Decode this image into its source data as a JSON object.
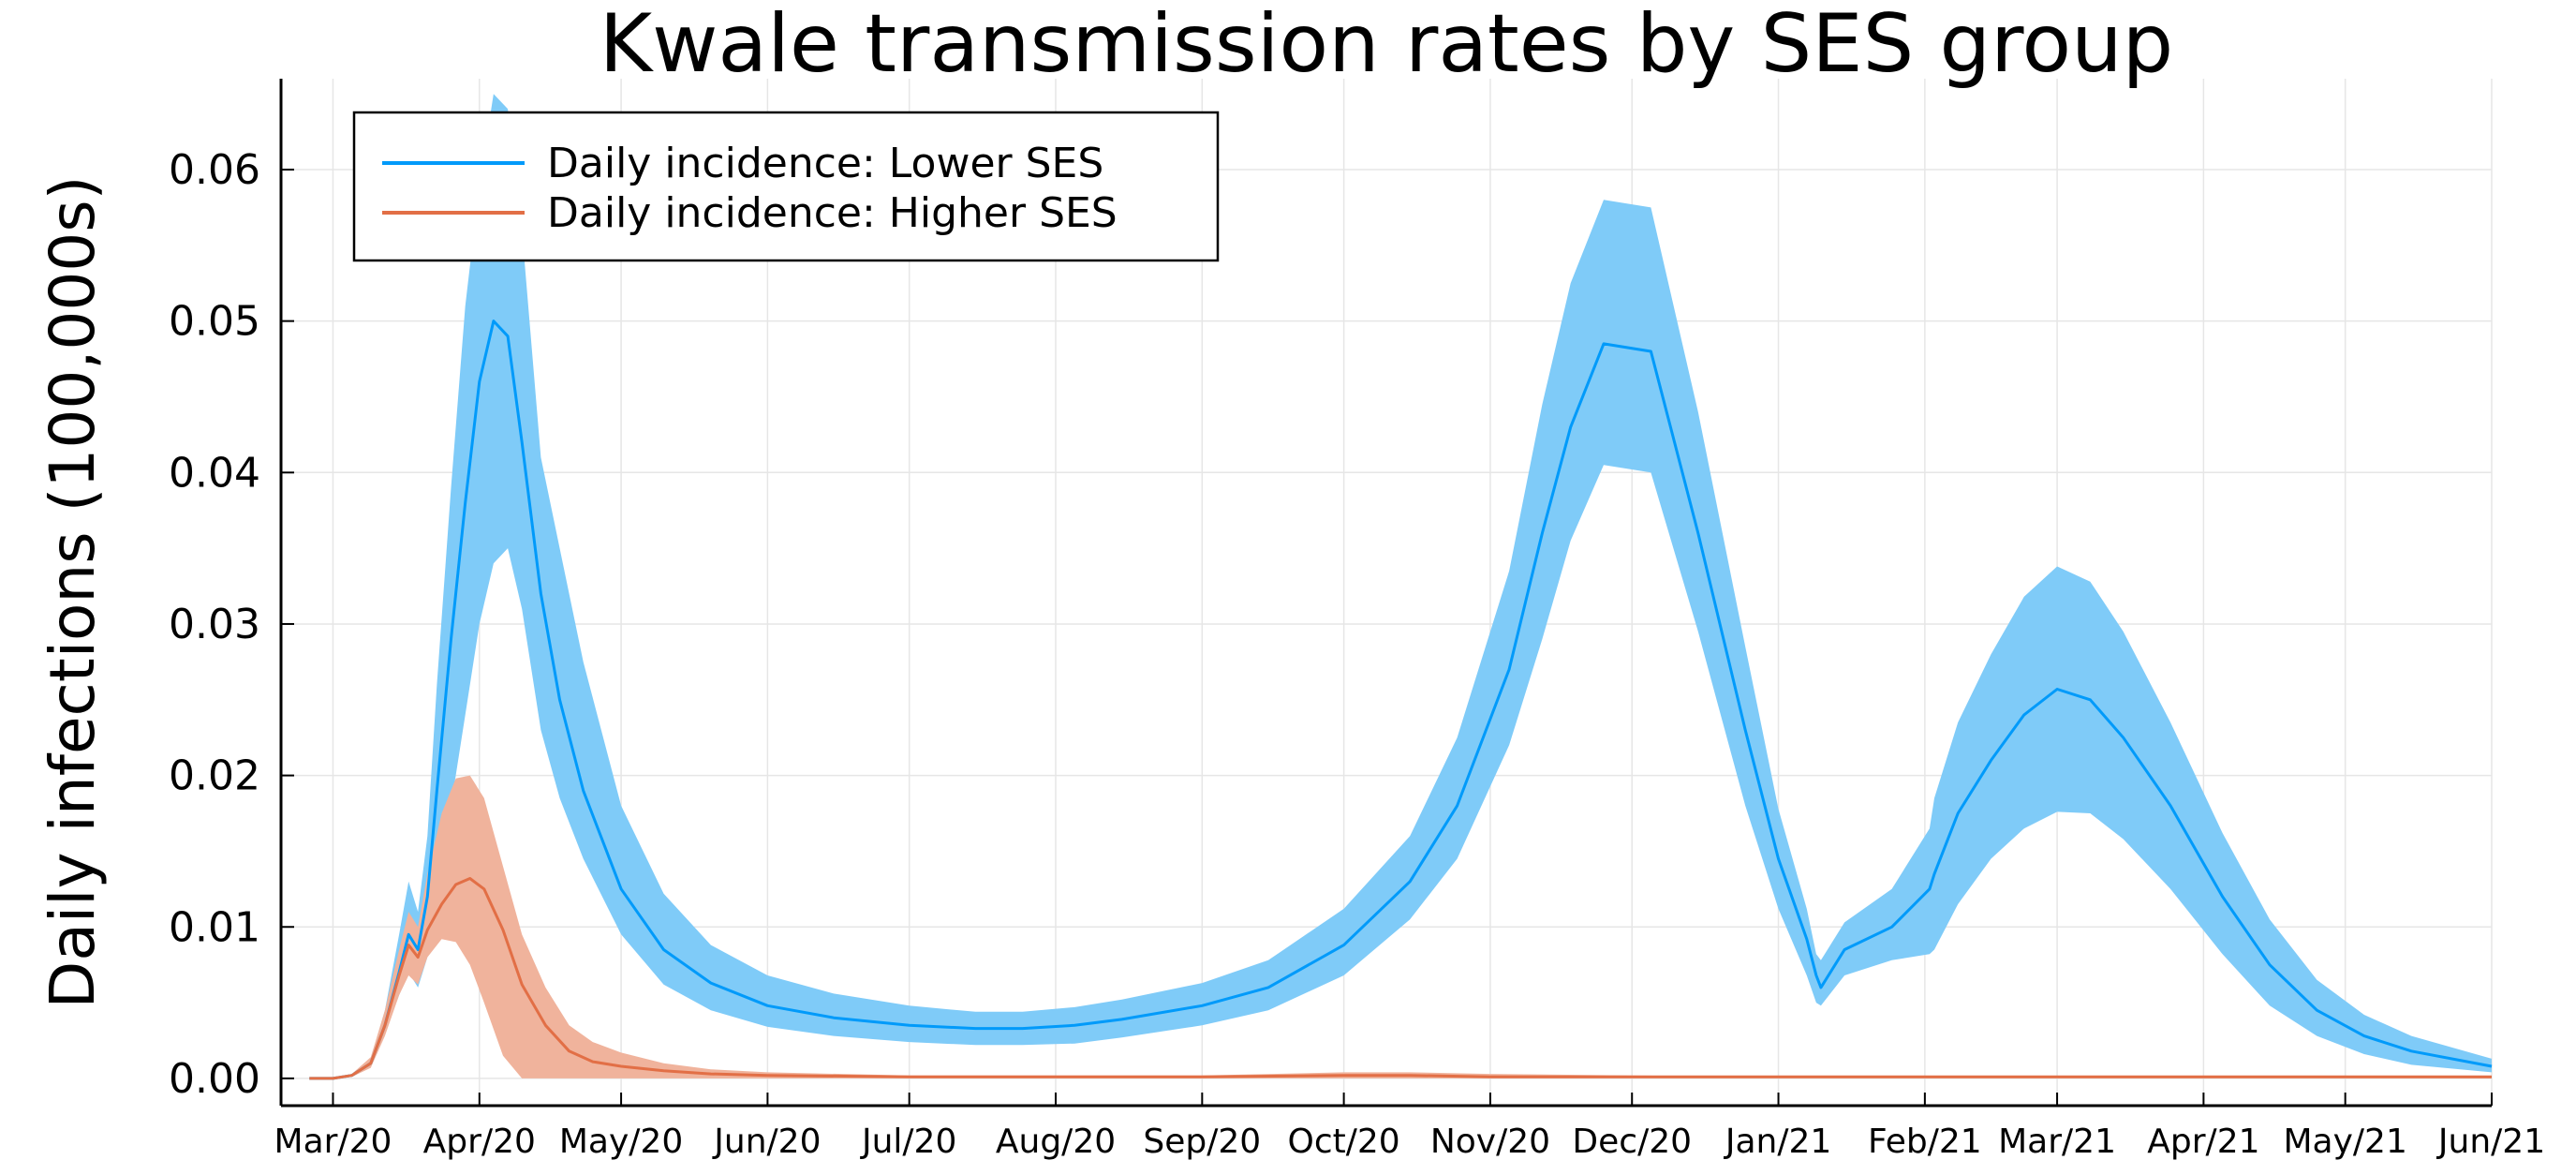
{
  "chart_data": {
    "type": "line",
    "title": "Kwale transmission rates by SES group",
    "xlabel": "",
    "ylabel": "Daily infections (100,000s)",
    "x_type": "date",
    "xlim": [
      "2020-02-19",
      "2021-06-01"
    ],
    "ylim": [
      -0.0018,
      0.066
    ],
    "grid": true,
    "legend_position": "top-left",
    "x_ticks": [
      {
        "date": "2020-03-01",
        "label": "Mar/20"
      },
      {
        "date": "2020-04-01",
        "label": "Apr/20"
      },
      {
        "date": "2020-05-01",
        "label": "May/20"
      },
      {
        "date": "2020-06-01",
        "label": "Jun/20"
      },
      {
        "date": "2020-07-01",
        "label": "Jul/20"
      },
      {
        "date": "2020-08-01",
        "label": "Aug/20"
      },
      {
        "date": "2020-09-01",
        "label": "Sep/20"
      },
      {
        "date": "2020-10-01",
        "label": "Oct/20"
      },
      {
        "date": "2020-11-01",
        "label": "Nov/20"
      },
      {
        "date": "2020-12-01",
        "label": "Dec/20"
      },
      {
        "date": "2021-01-01",
        "label": "Jan/21"
      },
      {
        "date": "2021-02-01",
        "label": "Feb/21"
      },
      {
        "date": "2021-03-01",
        "label": "Mar/21"
      },
      {
        "date": "2021-04-01",
        "label": "Apr/21"
      },
      {
        "date": "2021-05-01",
        "label": "May/21"
      },
      {
        "date": "2021-06-01",
        "label": "Jun/21"
      }
    ],
    "y_ticks": [
      {
        "value": 0,
        "label": "0.00"
      },
      {
        "value": 0.01,
        "label": "0.01"
      },
      {
        "value": 0.02,
        "label": "0.02"
      },
      {
        "value": 0.03,
        "label": "0.03"
      },
      {
        "value": 0.04,
        "label": "0.04"
      },
      {
        "value": 0.05,
        "label": "0.05"
      },
      {
        "value": 0.06,
        "label": "0.06"
      }
    ],
    "series": [
      {
        "name": "Daily incidence: Lower SES",
        "color": "#009AFA",
        "band_color": "#7FCBF8",
        "x": [
          "2020-02-25",
          "2020-03-01",
          "2020-03-05",
          "2020-03-09",
          "2020-03-12",
          "2020-03-15",
          "2020-03-17",
          "2020-03-19",
          "2020-03-21",
          "2020-03-23",
          "2020-03-26",
          "2020-03-29",
          "2020-04-01",
          "2020-04-04",
          "2020-04-07",
          "2020-04-10",
          "2020-04-14",
          "2020-04-18",
          "2020-04-23",
          "2020-05-01",
          "2020-05-10",
          "2020-05-20",
          "2020-06-01",
          "2020-06-15",
          "2020-07-01",
          "2020-07-15",
          "2020-07-25",
          "2020-08-05",
          "2020-08-15",
          "2020-09-01",
          "2020-09-15",
          "2020-10-01",
          "2020-10-15",
          "2020-10-25",
          "2020-11-05",
          "2020-11-12",
          "2020-11-18",
          "2020-11-25",
          "2020-12-05",
          "2020-12-15",
          "2020-12-25",
          "2021-01-01",
          "2021-01-07",
          "2021-01-09",
          "2021-01-10",
          "2021-01-15",
          "2021-01-25",
          "2021-02-02",
          "2021-02-03",
          "2021-02-08",
          "2021-02-15",
          "2021-02-22",
          "2021-03-01",
          "2021-03-08",
          "2021-03-15",
          "2021-03-25",
          "2021-04-05",
          "2021-04-15",
          "2021-04-25",
          "2021-05-05",
          "2021-05-15",
          "2021-06-01"
        ],
        "values": [
          0,
          0,
          0.0002,
          0.001,
          0.0035,
          0.007,
          0.0095,
          0.0085,
          0.012,
          0.019,
          0.029,
          0.038,
          0.046,
          0.05,
          0.049,
          0.042,
          0.032,
          0.025,
          0.019,
          0.0125,
          0.0085,
          0.0063,
          0.0048,
          0.004,
          0.0035,
          0.0033,
          0.0033,
          0.0035,
          0.0039,
          0.0048,
          0.006,
          0.0088,
          0.013,
          0.018,
          0.027,
          0.036,
          0.043,
          0.0485,
          0.048,
          0.036,
          0.023,
          0.0145,
          0.0092,
          0.0068,
          0.006,
          0.0085,
          0.01,
          0.0125,
          0.0135,
          0.0175,
          0.021,
          0.024,
          0.0257,
          0.025,
          0.0225,
          0.018,
          0.012,
          0.0075,
          0.0045,
          0.0028,
          0.0018,
          0.0008
        ],
        "lower": [
          0,
          0,
          0.0001,
          0.0008,
          0.003,
          0.0055,
          0.007,
          0.006,
          0.008,
          0.012,
          0.018,
          0.024,
          0.03,
          0.034,
          0.035,
          0.031,
          0.023,
          0.0185,
          0.0145,
          0.0095,
          0.0062,
          0.0045,
          0.0034,
          0.0028,
          0.0024,
          0.0022,
          0.0022,
          0.0023,
          0.0027,
          0.0035,
          0.0045,
          0.0068,
          0.0105,
          0.0145,
          0.022,
          0.029,
          0.0355,
          0.0405,
          0.04,
          0.0295,
          0.018,
          0.0112,
          0.0068,
          0.005,
          0.0048,
          0.0068,
          0.0078,
          0.0082,
          0.0085,
          0.0115,
          0.0145,
          0.0165,
          0.0176,
          0.0175,
          0.0158,
          0.0125,
          0.0082,
          0.0048,
          0.0028,
          0.0016,
          0.0009,
          0.0004
        ],
        "upper": [
          0,
          0,
          0.0003,
          0.0013,
          0.0045,
          0.0095,
          0.013,
          0.011,
          0.016,
          0.026,
          0.039,
          0.051,
          0.059,
          0.065,
          0.064,
          0.056,
          0.041,
          0.035,
          0.0275,
          0.018,
          0.0122,
          0.0088,
          0.0068,
          0.0056,
          0.0048,
          0.0044,
          0.0044,
          0.0047,
          0.0052,
          0.0063,
          0.0078,
          0.0112,
          0.016,
          0.0225,
          0.0335,
          0.0445,
          0.0525,
          0.058,
          0.0575,
          0.044,
          0.0285,
          0.0178,
          0.0112,
          0.0082,
          0.0078,
          0.0103,
          0.0125,
          0.0165,
          0.0185,
          0.0235,
          0.028,
          0.0318,
          0.0338,
          0.0328,
          0.0295,
          0.0235,
          0.0162,
          0.0105,
          0.0065,
          0.0042,
          0.0028,
          0.0013
        ]
      },
      {
        "name": "Daily incidence: Higher SES",
        "color": "#E26F46",
        "band_color": "#F0B39C",
        "x": [
          "2020-02-25",
          "2020-03-01",
          "2020-03-05",
          "2020-03-09",
          "2020-03-12",
          "2020-03-15",
          "2020-03-17",
          "2020-03-19",
          "2020-03-21",
          "2020-03-24",
          "2020-03-27",
          "2020-03-30",
          "2020-04-02",
          "2020-04-06",
          "2020-04-10",
          "2020-04-15",
          "2020-04-20",
          "2020-04-25",
          "2020-05-01",
          "2020-05-10",
          "2020-05-20",
          "2020-06-01",
          "2020-07-01",
          "2020-08-01",
          "2020-09-01",
          "2020-10-01",
          "2020-10-15",
          "2020-11-01",
          "2020-12-01",
          "2021-01-01",
          "2021-02-01",
          "2021-03-01",
          "2021-04-01",
          "2021-05-01",
          "2021-06-01"
        ],
        "values": [
          0,
          0,
          0.0002,
          0.001,
          0.0035,
          0.0068,
          0.0088,
          0.008,
          0.0098,
          0.0115,
          0.0128,
          0.0132,
          0.0125,
          0.0098,
          0.0062,
          0.0035,
          0.0018,
          0.0011,
          0.0008,
          0.0005,
          0.0003,
          0.0002,
          0.0001,
          0.0001,
          0.0001,
          0.0002,
          0.0002,
          0.0001,
          0.0001,
          0.0001,
          0.0001,
          0.0001,
          0.0001,
          0.0001,
          0.0001
        ],
        "lower": [
          0,
          0,
          0.0001,
          0.0007,
          0.0028,
          0.0055,
          0.0068,
          0.0062,
          0.008,
          0.0092,
          0.009,
          0.0075,
          0.005,
          0.0015,
          0,
          0,
          0,
          0,
          0,
          0,
          0,
          0,
          0,
          0,
          0,
          0,
          0,
          0,
          0,
          0,
          0,
          0,
          0,
          0,
          0
        ],
        "upper": [
          0,
          0,
          0.0003,
          0.0014,
          0.0045,
          0.0085,
          0.011,
          0.01,
          0.0135,
          0.0175,
          0.0198,
          0.02,
          0.0185,
          0.014,
          0.0095,
          0.006,
          0.0035,
          0.0024,
          0.0017,
          0.001,
          0.0006,
          0.0004,
          0.0002,
          0.0002,
          0.0002,
          0.0004,
          0.0004,
          0.0003,
          0.0002,
          0.0001,
          0.0001,
          0.0001,
          0.0001,
          0.0001,
          0.0001
        ]
      }
    ]
  }
}
